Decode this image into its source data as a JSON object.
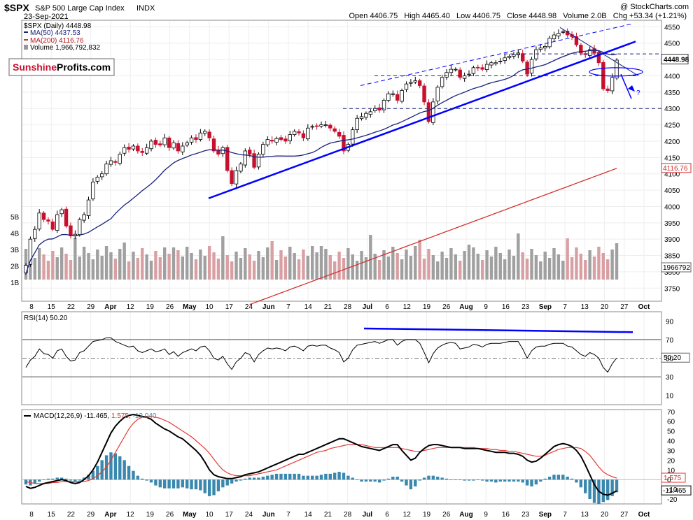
{
  "header": {
    "ticker": "$SPX",
    "name": "S&P 500 Large Cap Index",
    "exchange": "INDX",
    "date": "23-Sep-2021",
    "copyright": "@ StockCharts.com",
    "ohlc_text": "Open 4406.75   High 4465.40   Low 4406.75   Close 4448.98   Volume 2.0B   Chg +53.34 (+1.21%)",
    "brand_a": "Sunshine",
    "brand_b": "Profits",
    "brand_c": ".com"
  },
  "legend": {
    "price": "$SPX (Daily) 4448.98",
    "ma50": "MA(50) 4437.53",
    "ma200": "MA(200) 4116.76",
    "volume": "Volume 1,966,792,832"
  },
  "colors": {
    "up": "#ffffff",
    "down": "#c8102e",
    "ma50": "#1a237e",
    "ma200": "#d32f2f",
    "trend": "#0000ff",
    "vol_up": "#a0a0a0",
    "vol_down": "#d9a0a4",
    "macd_hist": "#3a88ad"
  },
  "chart_data": [
    {
      "type": "candlestick",
      "title": "$SPX (Daily) 4448.98",
      "ylim": [
        3710,
        4570
      ],
      "y_ticks": [
        3750,
        3800,
        3850,
        3900,
        3950,
        4000,
        4050,
        4100,
        4150,
        4200,
        4250,
        4300,
        4350,
        4400,
        4450,
        4500,
        4550
      ],
      "last_price_label": "4448.98",
      "ma200_label": "4116.76",
      "volume_label": "1966792",
      "volume_axis": [
        "5B",
        "4B",
        "3B",
        "2B",
        "1B"
      ],
      "x_labels": [
        "8",
        "15",
        "22",
        "29",
        "Apr",
        "12",
        "19",
        "26",
        "May",
        "10",
        "17",
        "24",
        "Jun",
        "7",
        "14",
        "21",
        "28",
        "Jul",
        "6",
        "12",
        "19",
        "26",
        "Aug",
        "9",
        "16",
        "23",
        "Sep",
        "7",
        "13",
        "20",
        "27",
        "Oct"
      ],
      "close_path": [
        3820,
        3900,
        3930,
        3980,
        3960,
        3955,
        3930,
        3975,
        3990,
        3940,
        3910,
        3915,
        3960,
        3975,
        4020,
        4075,
        4090,
        4100,
        4130,
        4140,
        4135,
        4160,
        4180,
        4175,
        4185,
        4170,
        4165,
        4180,
        4200,
        4190,
        4188,
        4210,
        4180,
        4195,
        4170,
        4185,
        4195,
        4210,
        4205,
        4225,
        4230,
        4210,
        4170,
        4160,
        4180,
        4110,
        4070,
        4110,
        4130,
        4170,
        4160,
        4120,
        4160,
        4190,
        4205,
        4200,
        4208,
        4205,
        4200,
        4220,
        4230,
        4225,
        4210,
        4240,
        4245,
        4245,
        4250,
        4250,
        4240,
        4230,
        4215,
        4170,
        4190,
        4235,
        4270,
        4275,
        4285,
        4290,
        4300,
        4295,
        4325,
        4345,
        4345,
        4325,
        4355,
        4375,
        4380,
        4385,
        4370,
        4320,
        4260,
        4320,
        4365,
        4395,
        4410,
        4420,
        4420,
        4395,
        4400,
        4405,
        4425,
        4425,
        4420,
        4435,
        4440,
        4440,
        4445,
        4455,
        4460,
        4465,
        4470,
        4445,
        4405,
        4450,
        4480,
        4485,
        4490,
        4515,
        4525,
        4530,
        4535,
        4525,
        4520,
        4495,
        4470,
        4465,
        4480,
        4470,
        4440,
        4360,
        4355,
        4395,
        4448
      ],
      "trend_lines": "blue support and resistance lines drawn on price panel",
      "annotation": "?"
    },
    {
      "type": "line",
      "title": "RSI(14) 50.20",
      "ylim": [
        0,
        100
      ],
      "y_ticks": [
        10,
        30,
        50,
        70,
        90
      ],
      "value_label": "50.20",
      "values": [
        40,
        48,
        52,
        60,
        55,
        54,
        50,
        58,
        60,
        52,
        47,
        48,
        56,
        58,
        63,
        68,
        69,
        70,
        72,
        72,
        68,
        66,
        64,
        62,
        63,
        58,
        56,
        58,
        60,
        57,
        58,
        60,
        54,
        57,
        52,
        56,
        58,
        60,
        58,
        62,
        63,
        58,
        50,
        48,
        52,
        44,
        38,
        46,
        50,
        56,
        54,
        46,
        54,
        58,
        61,
        60,
        61,
        60,
        58,
        62,
        63,
        61,
        58,
        63,
        64,
        63,
        64,
        64,
        61,
        59,
        56,
        46,
        50,
        59,
        64,
        65,
        66,
        67,
        68,
        66,
        68,
        70,
        70,
        64,
        68,
        70,
        70,
        70,
        66,
        56,
        45,
        55,
        61,
        64,
        66,
        67,
        66,
        60,
        61,
        62,
        65,
        64,
        62,
        65,
        66,
        66,
        66,
        67,
        68,
        68,
        68,
        60,
        50,
        58,
        62,
        63,
        63,
        65,
        66,
        66,
        66,
        63,
        62,
        58,
        54,
        52,
        56,
        54,
        50,
        40,
        35,
        44,
        50.2
      ]
    },
    {
      "type": "line",
      "title": "MACD(12,26,9) -11.465, 1.575, -13.040",
      "label_macd": "MACD(12,26,9)",
      "label_macd_val": "-11.465,",
      "label_signal_val": "1.575,",
      "label_hist_val": "-13.040",
      "ylim": [
        -25,
        72
      ],
      "y_ticks": [
        -20,
        -10,
        0,
        10,
        20,
        30,
        40,
        50,
        60,
        70
      ],
      "macd_label": "-11.465",
      "signal_label": "1.575",
      "macd_values": [
        -7,
        -9,
        -8,
        -6,
        -4,
        -3,
        -2,
        -1,
        0,
        -1,
        -3,
        -4,
        -3,
        0,
        4,
        10,
        18,
        28,
        38,
        48,
        55,
        60,
        64,
        66,
        67,
        66,
        65,
        64,
        62,
        58,
        55,
        52,
        50,
        47,
        44,
        42,
        38,
        34,
        30,
        25,
        18,
        10,
        5,
        3,
        2,
        1,
        1,
        2,
        3,
        5,
        6,
        7,
        8,
        10,
        12,
        14,
        16,
        18,
        20,
        22,
        24,
        26,
        26,
        28,
        30,
        32,
        34,
        36,
        38,
        40,
        42,
        42,
        40,
        38,
        36,
        34,
        33,
        32,
        31,
        30,
        32,
        34,
        36,
        36,
        30,
        25,
        20,
        22,
        28,
        32,
        35,
        36,
        36,
        35,
        34,
        33,
        33,
        33,
        32,
        32,
        32,
        32,
        31,
        30,
        29,
        28,
        28,
        28,
        27,
        27,
        26,
        24,
        20,
        18,
        19,
        22,
        26,
        30,
        34,
        36,
        37,
        36,
        34,
        30,
        24,
        15,
        5,
        -5,
        -12,
        -15,
        -16,
        -14,
        -11.465
      ],
      "signal_values": [
        -2,
        -3,
        -4,
        -4,
        -4,
        -4,
        -3,
        -3,
        -2,
        -2,
        -2,
        -2,
        -2,
        -2,
        -1,
        1,
        4,
        8,
        13,
        20,
        28,
        36,
        44,
        52,
        58,
        62,
        64,
        65,
        65,
        64,
        63,
        61,
        59,
        56,
        53,
        50,
        47,
        44,
        40,
        36,
        32,
        27,
        21,
        15,
        10,
        7,
        5,
        4,
        4,
        4,
        4,
        5,
        6,
        7,
        8,
        9,
        10,
        12,
        14,
        16,
        18,
        20,
        22,
        24,
        26,
        28,
        29,
        30,
        32,
        33,
        34,
        35,
        36,
        36,
        36,
        36,
        35,
        34,
        33,
        33,
        33,
        33,
        33,
        33,
        32,
        31,
        30,
        29,
        29,
        30,
        31,
        32,
        33,
        33,
        33,
        33,
        33,
        33,
        33,
        33,
        33,
        32,
        32,
        32,
        31,
        31,
        30,
        30,
        29,
        29,
        28,
        27,
        26,
        25,
        24,
        24,
        25,
        27,
        29,
        31,
        32,
        33,
        33,
        33,
        32,
        29,
        25,
        19,
        13,
        8,
        5,
        3,
        1.575
      ]
    }
  ]
}
